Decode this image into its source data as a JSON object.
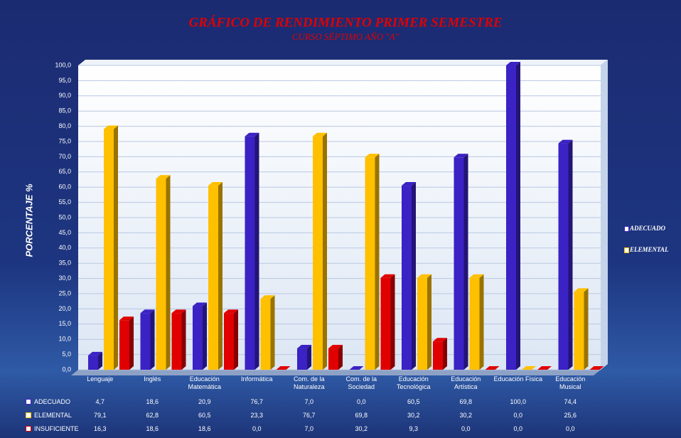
{
  "chart_data": {
    "type": "bar",
    "title": "GRÁFICO DE RENDIMIENTO PRIMER SEMESTRE",
    "subtitle": "CURSO SÉPTIMO AÑO \"A\"",
    "y_label": "PORCENTAJE  %",
    "categories": [
      "Lenguaje",
      "Inglés",
      "Educación Matemática",
      "Informática",
      "Com. de la Naturaleza",
      "Com. de la Sociedad",
      "Educación Tecnológica",
      "Educación Artística",
      "Educación Física",
      "Educación Musical"
    ],
    "series": [
      {
        "name": "ADECUADO",
        "color": "#3a22c4",
        "values": [
          4.7,
          18.6,
          20.9,
          76.7,
          7.0,
          0.0,
          60.5,
          69.8,
          100.0,
          74.4
        ],
        "value_labels": [
          "4,7",
          "18,6",
          "20,9",
          "76,7",
          "7,0",
          "0,0",
          "60,5",
          "69,8",
          "100,0",
          "74,4"
        ]
      },
      {
        "name": "ELEMENTAL",
        "color": "#ffc000",
        "values": [
          79.1,
          62.8,
          60.5,
          23.3,
          76.7,
          69.8,
          30.2,
          30.2,
          0.0,
          25.6
        ],
        "value_labels": [
          "79,1",
          "62,8",
          "60,5",
          "23,3",
          "76,7",
          "69,8",
          "30,2",
          "30,2",
          "0,0",
          "25,6"
        ]
      },
      {
        "name": "INSUFICIENTE",
        "color": "#e00000",
        "values": [
          16.3,
          18.6,
          18.6,
          0.0,
          7.0,
          30.2,
          9.3,
          0.0,
          0.0,
          0.0
        ],
        "value_labels": [
          "16,3",
          "18,6",
          "18,6",
          "0,0",
          "7,0",
          "30,2",
          "9,3",
          "0,0",
          "0,0",
          "0,0"
        ]
      }
    ],
    "ylim": [
      0,
      100
    ],
    "yticks": [
      {
        "value": 0,
        "label": "0,0"
      },
      {
        "value": 5,
        "label": "5,0"
      },
      {
        "value": 10,
        "label": "10,0"
      },
      {
        "value": 15,
        "label": "15,0"
      },
      {
        "value": 20,
        "label": "20,0"
      },
      {
        "value": 25,
        "label": "25,0"
      },
      {
        "value": 30,
        "label": "30,0"
      },
      {
        "value": 35,
        "label": "35,0"
      },
      {
        "value": 40,
        "label": "40,0"
      },
      {
        "value": 45,
        "label": "45,0"
      },
      {
        "value": 50,
        "label": "50,0"
      },
      {
        "value": 55,
        "label": "55,0"
      },
      {
        "value": 60,
        "label": "60,0"
      },
      {
        "value": 65,
        "label": "65,0"
      },
      {
        "value": 70,
        "label": "70,0"
      },
      {
        "value": 75,
        "label": "75,0"
      },
      {
        "value": 80,
        "label": "80,0"
      },
      {
        "value": 85,
        "label": "85,0"
      },
      {
        "value": 90,
        "label": "90,0"
      },
      {
        "value": 95,
        "label": "95,0"
      },
      {
        "value": 100,
        "label": "100,0"
      }
    ],
    "grid": true,
    "legend": "right"
  }
}
